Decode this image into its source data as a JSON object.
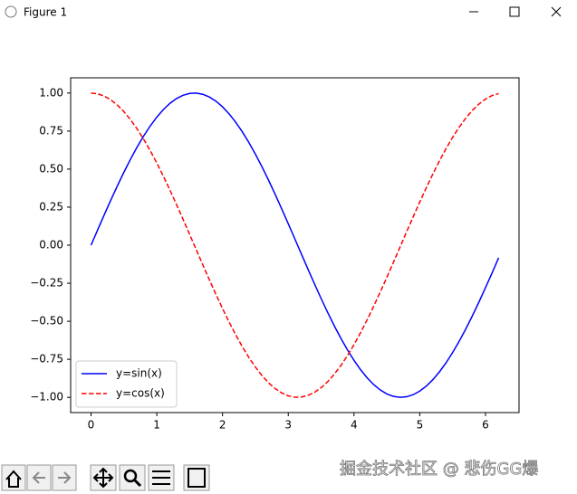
{
  "window": {
    "title": "Figure 1"
  },
  "watermark": "掘金技术社区 @ 悲伤GG爆",
  "chart_data": {
    "type": "line",
    "x": [
      0,
      0.1,
      0.2,
      0.3,
      0.4,
      0.5,
      0.6,
      0.7,
      0.8,
      0.9,
      1.0,
      1.1,
      1.2,
      1.3,
      1.4,
      1.5,
      1.6,
      1.7,
      1.8,
      1.9,
      2.0,
      2.1,
      2.2,
      2.3,
      2.4,
      2.5,
      2.6,
      2.7,
      2.8,
      2.9,
      3.0,
      3.1,
      3.2,
      3.3,
      3.4,
      3.5,
      3.6,
      3.7,
      3.8,
      3.9,
      4.0,
      4.1,
      4.2,
      4.3,
      4.4,
      4.5,
      4.6,
      4.7,
      4.8,
      4.9,
      5.0,
      5.1,
      5.2,
      5.3,
      5.4,
      5.5,
      5.6,
      5.7,
      5.8,
      5.9,
      6.0,
      6.1,
      6.2
    ],
    "series": [
      {
        "name": "y=sin(x)",
        "color": "#0000ff",
        "linestyle": "solid",
        "values": [
          0,
          0.0998,
          0.1987,
          0.2955,
          0.3894,
          0.4794,
          0.5646,
          0.6442,
          0.7174,
          0.7833,
          0.8415,
          0.8912,
          0.932,
          0.9636,
          0.9854,
          0.9975,
          0.9996,
          0.9917,
          0.9738,
          0.9463,
          0.9093,
          0.8632,
          0.8085,
          0.7457,
          0.6755,
          0.5985,
          0.5155,
          0.4274,
          0.335,
          0.2392,
          0.1411,
          0.0416,
          -0.0584,
          -0.1577,
          -0.2555,
          -0.3508,
          -0.4425,
          -0.5298,
          -0.6119,
          -0.6878,
          -0.7568,
          -0.8183,
          -0.8716,
          -0.9162,
          -0.9516,
          -0.9775,
          -0.9937,
          -0.9999,
          -0.9962,
          -0.9825,
          -0.9589,
          -0.9258,
          -0.8835,
          -0.8323,
          -0.7728,
          -0.7055,
          -0.6313,
          -0.5507,
          -0.4646,
          -0.3739,
          -0.2794,
          -0.1822,
          -0.0831
        ]
      },
      {
        "name": "y=cos(x)",
        "color": "#ff0000",
        "linestyle": "dashed",
        "values": [
          1,
          0.995,
          0.9801,
          0.9553,
          0.9211,
          0.8776,
          0.8253,
          0.7648,
          0.6967,
          0.6216,
          0.5403,
          0.4536,
          0.3624,
          0.2675,
          0.17,
          0.0707,
          -0.0292,
          -0.1288,
          -0.2272,
          -0.3233,
          -0.4161,
          -0.5048,
          -0.5885,
          -0.6663,
          -0.7374,
          -0.8011,
          -0.8569,
          -0.9041,
          -0.9422,
          -0.971,
          -0.99,
          -0.9991,
          -0.9983,
          -0.9875,
          -0.9668,
          -0.9365,
          -0.8968,
          -0.8481,
          -0.791,
          -0.7259,
          -0.6536,
          -0.5748,
          -0.4903,
          -0.4008,
          -0.3073,
          -0.2108,
          -0.1122,
          -0.0124,
          0.0875,
          0.1865,
          0.2837,
          0.378,
          0.4685,
          0.5544,
          0.6347,
          0.7087,
          0.7756,
          0.8347,
          0.8855,
          0.9275,
          0.9602,
          0.9833,
          0.9965
        ]
      }
    ],
    "xlim": [
      -0.31,
      6.51
    ],
    "ylim": [
      -1.1,
      1.1
    ],
    "xticks": [
      0,
      1,
      2,
      3,
      4,
      5,
      6
    ],
    "yticks": [
      {
        "value": -1,
        "label": "−1.00"
      },
      {
        "value": -0.75,
        "label": "−0.75"
      },
      {
        "value": -0.5,
        "label": "−0.50"
      },
      {
        "value": -0.25,
        "label": "−0.25"
      },
      {
        "value": 0,
        "label": "0.00"
      },
      {
        "value": 0.25,
        "label": "0.25"
      },
      {
        "value": 0.5,
        "label": "0.50"
      },
      {
        "value": 0.75,
        "label": "0.75"
      },
      {
        "value": 1,
        "label": "1.00"
      }
    ],
    "grid": false,
    "legend": "lower left"
  }
}
